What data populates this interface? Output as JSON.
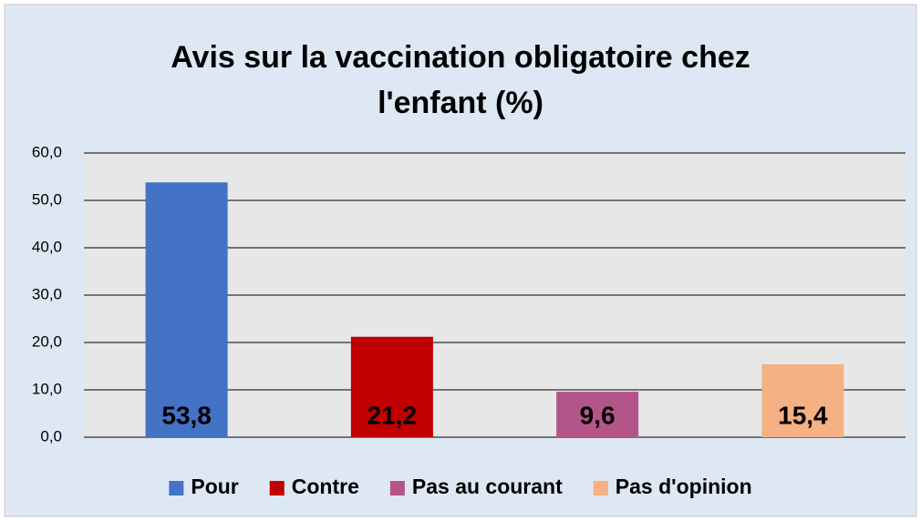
{
  "chart_data": {
    "type": "bar",
    "title": "Avis sur la vaccination obligatoire chez l'enfant (%)",
    "categories": [
      "Pour",
      "Contre",
      "Pas au courant",
      "Pas d'opinion"
    ],
    "values": [
      53.8,
      21.2,
      9.6,
      15.4
    ],
    "value_labels": [
      "53,8",
      "21,2",
      "9,6",
      "15,4"
    ],
    "colors": [
      "#4472c4",
      "#c00000",
      "#b4558a",
      "#f4b183"
    ],
    "ylim": [
      0,
      60
    ],
    "yticks": [
      {
        "value": 0,
        "label": "0,0"
      },
      {
        "value": 10,
        "label": "10,0"
      },
      {
        "value": 20,
        "label": "20,0"
      },
      {
        "value": 30,
        "label": "30,0"
      },
      {
        "value": 40,
        "label": "40,0"
      },
      {
        "value": 50,
        "label": "50,0"
      },
      {
        "value": 60,
        "label": "60,0"
      }
    ],
    "grid": true,
    "legend": "bottom"
  }
}
